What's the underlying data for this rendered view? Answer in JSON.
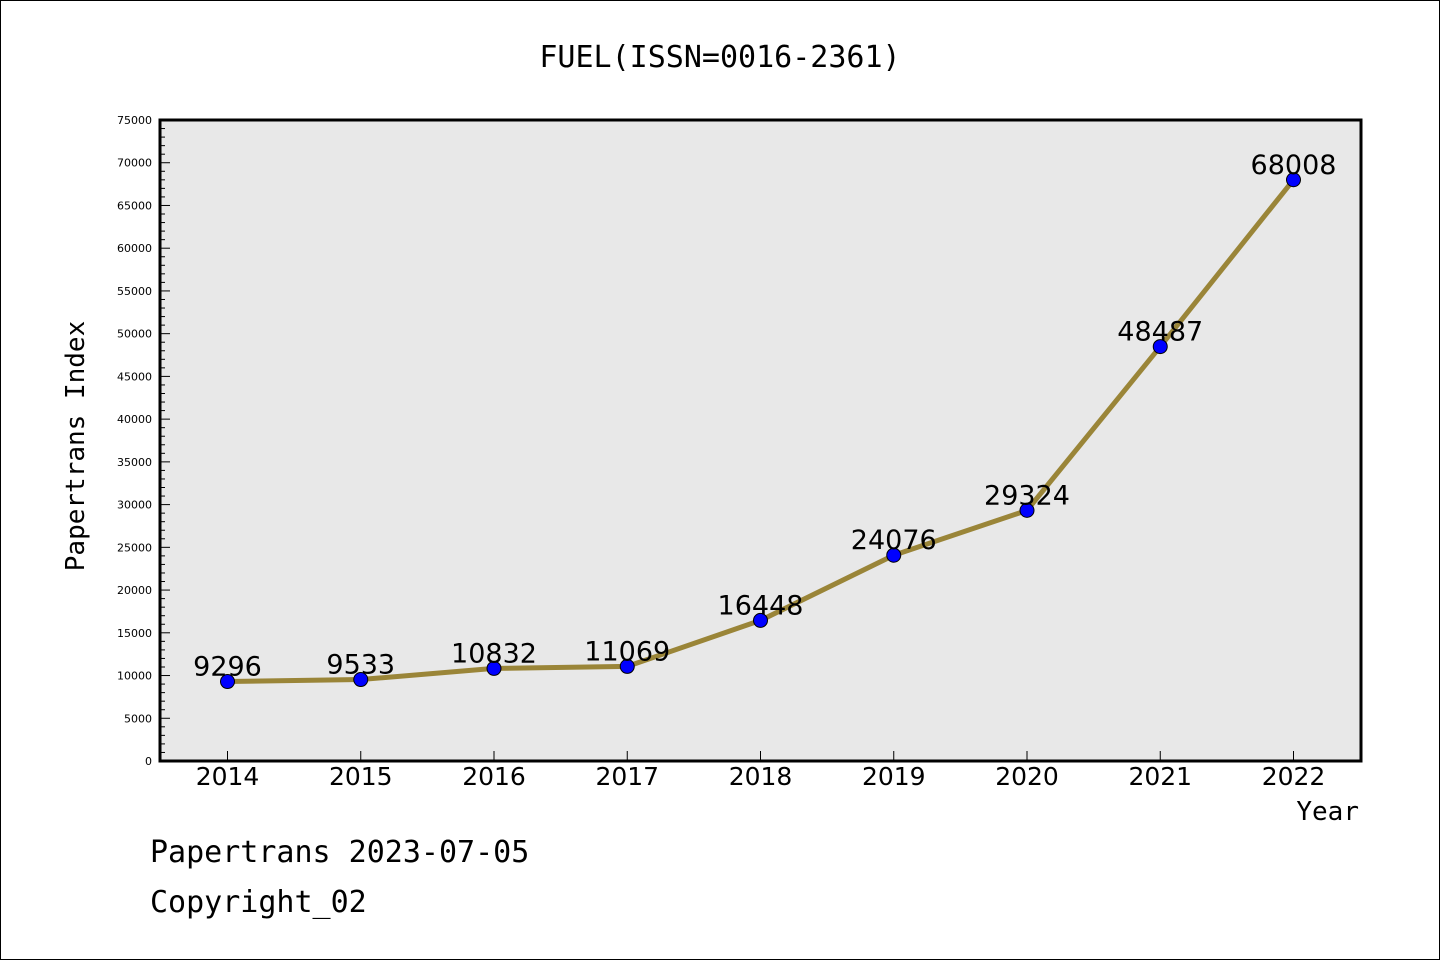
{
  "chart_data": {
    "type": "line",
    "title": "FUEL(ISSN=0016-2361)",
    "xlabel": "Year",
    "ylabel": "Papertrans Index",
    "categories": [
      "2014",
      "2015",
      "2016",
      "2017",
      "2018",
      "2019",
      "2020",
      "2021",
      "2022"
    ],
    "values": [
      9296,
      9533,
      10832,
      11069,
      16448,
      24076,
      29324,
      48487,
      68008
    ],
    "data_labels": [
      "9296",
      "9533",
      "10832",
      "11069",
      "16448",
      "24076",
      "29324",
      "48487",
      "68008"
    ],
    "y_ticks": [
      "0",
      "5000",
      "10000",
      "15000",
      "20000",
      "25000",
      "30000",
      "35000",
      "40000",
      "45000",
      "50000",
      "55000",
      "60000",
      "65000",
      "70000",
      "75000"
    ],
    "ylim": [
      0,
      75000
    ],
    "grid": false,
    "legend": "none",
    "colors": {
      "line": "#9a8538",
      "marker": "#0000ff",
      "plot_background": "#e8e8e8"
    }
  },
  "footer": {
    "line1": "Papertrans 2023-07-05",
    "line2": "Copyright_02"
  }
}
